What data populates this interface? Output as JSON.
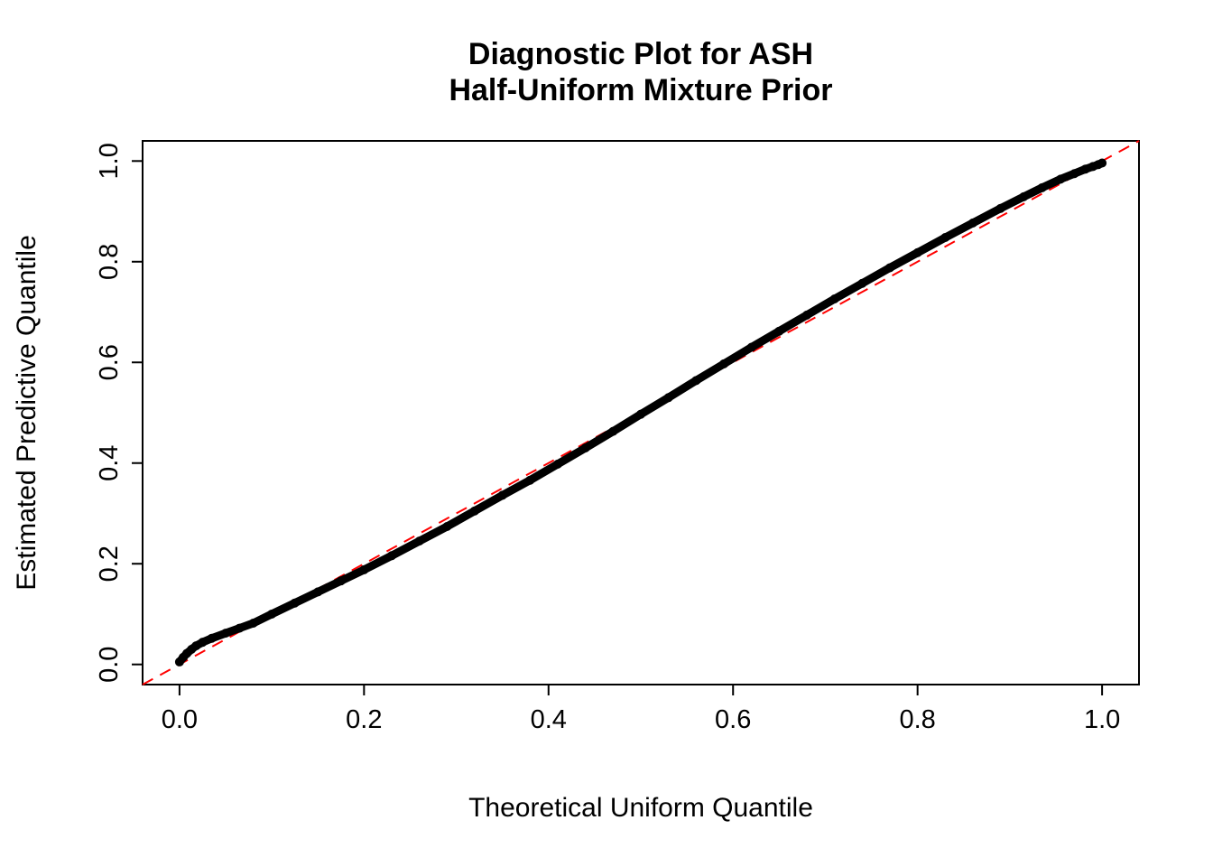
{
  "figure": {
    "title_line1": "Diagnostic Plot for ASH",
    "title_line2": "Half-Uniform Mixture Prior",
    "xlabel": "Theoretical Uniform Quantile",
    "ylabel": "Estimated Predictive Quantile"
  },
  "chart_data": {
    "type": "scatter",
    "title": "Diagnostic Plot for ASH Half-Uniform Mixture Prior",
    "xlabel": "Theoretical Uniform Quantile",
    "ylabel": "Estimated Predictive Quantile",
    "xlim": [
      -0.04,
      1.04
    ],
    "ylim": [
      -0.04,
      1.04
    ],
    "x_ticks": [
      0.0,
      0.2,
      0.4,
      0.6,
      0.8,
      1.0
    ],
    "x_tick_labels": [
      "0.0",
      "0.2",
      "0.4",
      "0.6",
      "0.8",
      "1.0"
    ],
    "y_ticks": [
      0.0,
      0.2,
      0.4,
      0.6,
      0.8,
      1.0
    ],
    "y_tick_labels": [
      "0.0",
      "0.2",
      "0.4",
      "0.6",
      "0.8",
      "1.0"
    ],
    "grid": false,
    "legend": null,
    "series": [
      {
        "name": "identity-reference-line",
        "type": "line",
        "style": "dashed",
        "color": "#FF0000",
        "line_width": 2,
        "x": [
          -0.04,
          1.04
        ],
        "y": [
          -0.04,
          1.04
        ]
      },
      {
        "name": "estimated-vs-theoretical-quantiles",
        "type": "points",
        "color": "#000000",
        "marker_size": 9,
        "x": [
          0.0,
          0.004,
          0.008,
          0.013,
          0.018,
          0.025,
          0.035,
          0.05,
          0.065,
          0.08,
          0.1,
          0.125,
          0.15,
          0.175,
          0.2,
          0.23,
          0.26,
          0.29,
          0.32,
          0.35,
          0.38,
          0.41,
          0.44,
          0.47,
          0.5,
          0.53,
          0.56,
          0.59,
          0.62,
          0.65,
          0.68,
          0.71,
          0.74,
          0.77,
          0.8,
          0.83,
          0.86,
          0.89,
          0.915,
          0.935,
          0.955,
          0.97,
          0.982,
          0.99,
          0.996,
          1.0
        ],
        "y": [
          0.005,
          0.014,
          0.022,
          0.03,
          0.037,
          0.044,
          0.052,
          0.062,
          0.072,
          0.082,
          0.1,
          0.122,
          0.144,
          0.166,
          0.188,
          0.216,
          0.245,
          0.274,
          0.305,
          0.336,
          0.366,
          0.398,
          0.43,
          0.463,
          0.497,
          0.53,
          0.564,
          0.597,
          0.63,
          0.662,
          0.694,
          0.726,
          0.757,
          0.788,
          0.818,
          0.848,
          0.877,
          0.906,
          0.929,
          0.947,
          0.964,
          0.975,
          0.984,
          0.989,
          0.993,
          0.996
        ]
      }
    ]
  },
  "colors": {
    "curve": "#000000",
    "reference_line": "#FF0000",
    "axis": "#000000",
    "background": "#FFFFFF"
  }
}
